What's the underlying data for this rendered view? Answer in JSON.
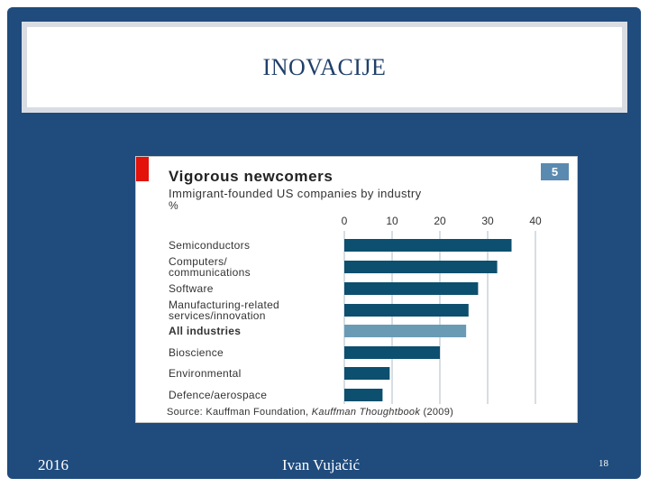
{
  "slide": {
    "title": "INOVACIJE",
    "footer_year": "2016",
    "footer_author": "Ivan Vujačić",
    "page_number": "18"
  },
  "colors": {
    "background": "#1f4b7d",
    "bar": "#0d4f6e",
    "bar_highlight": "#6a9bb5",
    "accent_red": "#e3120b"
  },
  "chart_data": {
    "type": "bar",
    "orientation": "horizontal",
    "title": "Vigorous newcomers",
    "subtitle": "Immigrant-founded US companies by industry",
    "unit": "%",
    "badge": "5",
    "ticks": [
      0,
      10,
      20,
      30,
      40
    ],
    "xlim": [
      0,
      40
    ],
    "grid": true,
    "categories": [
      "Semiconductors",
      "Computers/ communications",
      "Software",
      "Manufacturing-related services/innovation",
      "All industries",
      "Bioscience",
      "Environmental",
      "Defence/aerospace"
    ],
    "category_lines": [
      [
        "Semiconductors"
      ],
      [
        "Computers/",
        "communications"
      ],
      [
        "Software"
      ],
      [
        "Manufacturing-related",
        "services/innovation"
      ],
      [
        "All industries"
      ],
      [
        "Bioscience"
      ],
      [
        "Environmental"
      ],
      [
        "Defence/aerospace"
      ]
    ],
    "values": [
      35,
      32,
      28,
      26,
      25.5,
      20,
      9.5,
      8
    ],
    "highlight_category": "All industries",
    "source_prefix": "Source: Kauffman Foundation, ",
    "source_italic": "Kauffman Thoughtbook",
    "source_suffix": " (2009)"
  }
}
